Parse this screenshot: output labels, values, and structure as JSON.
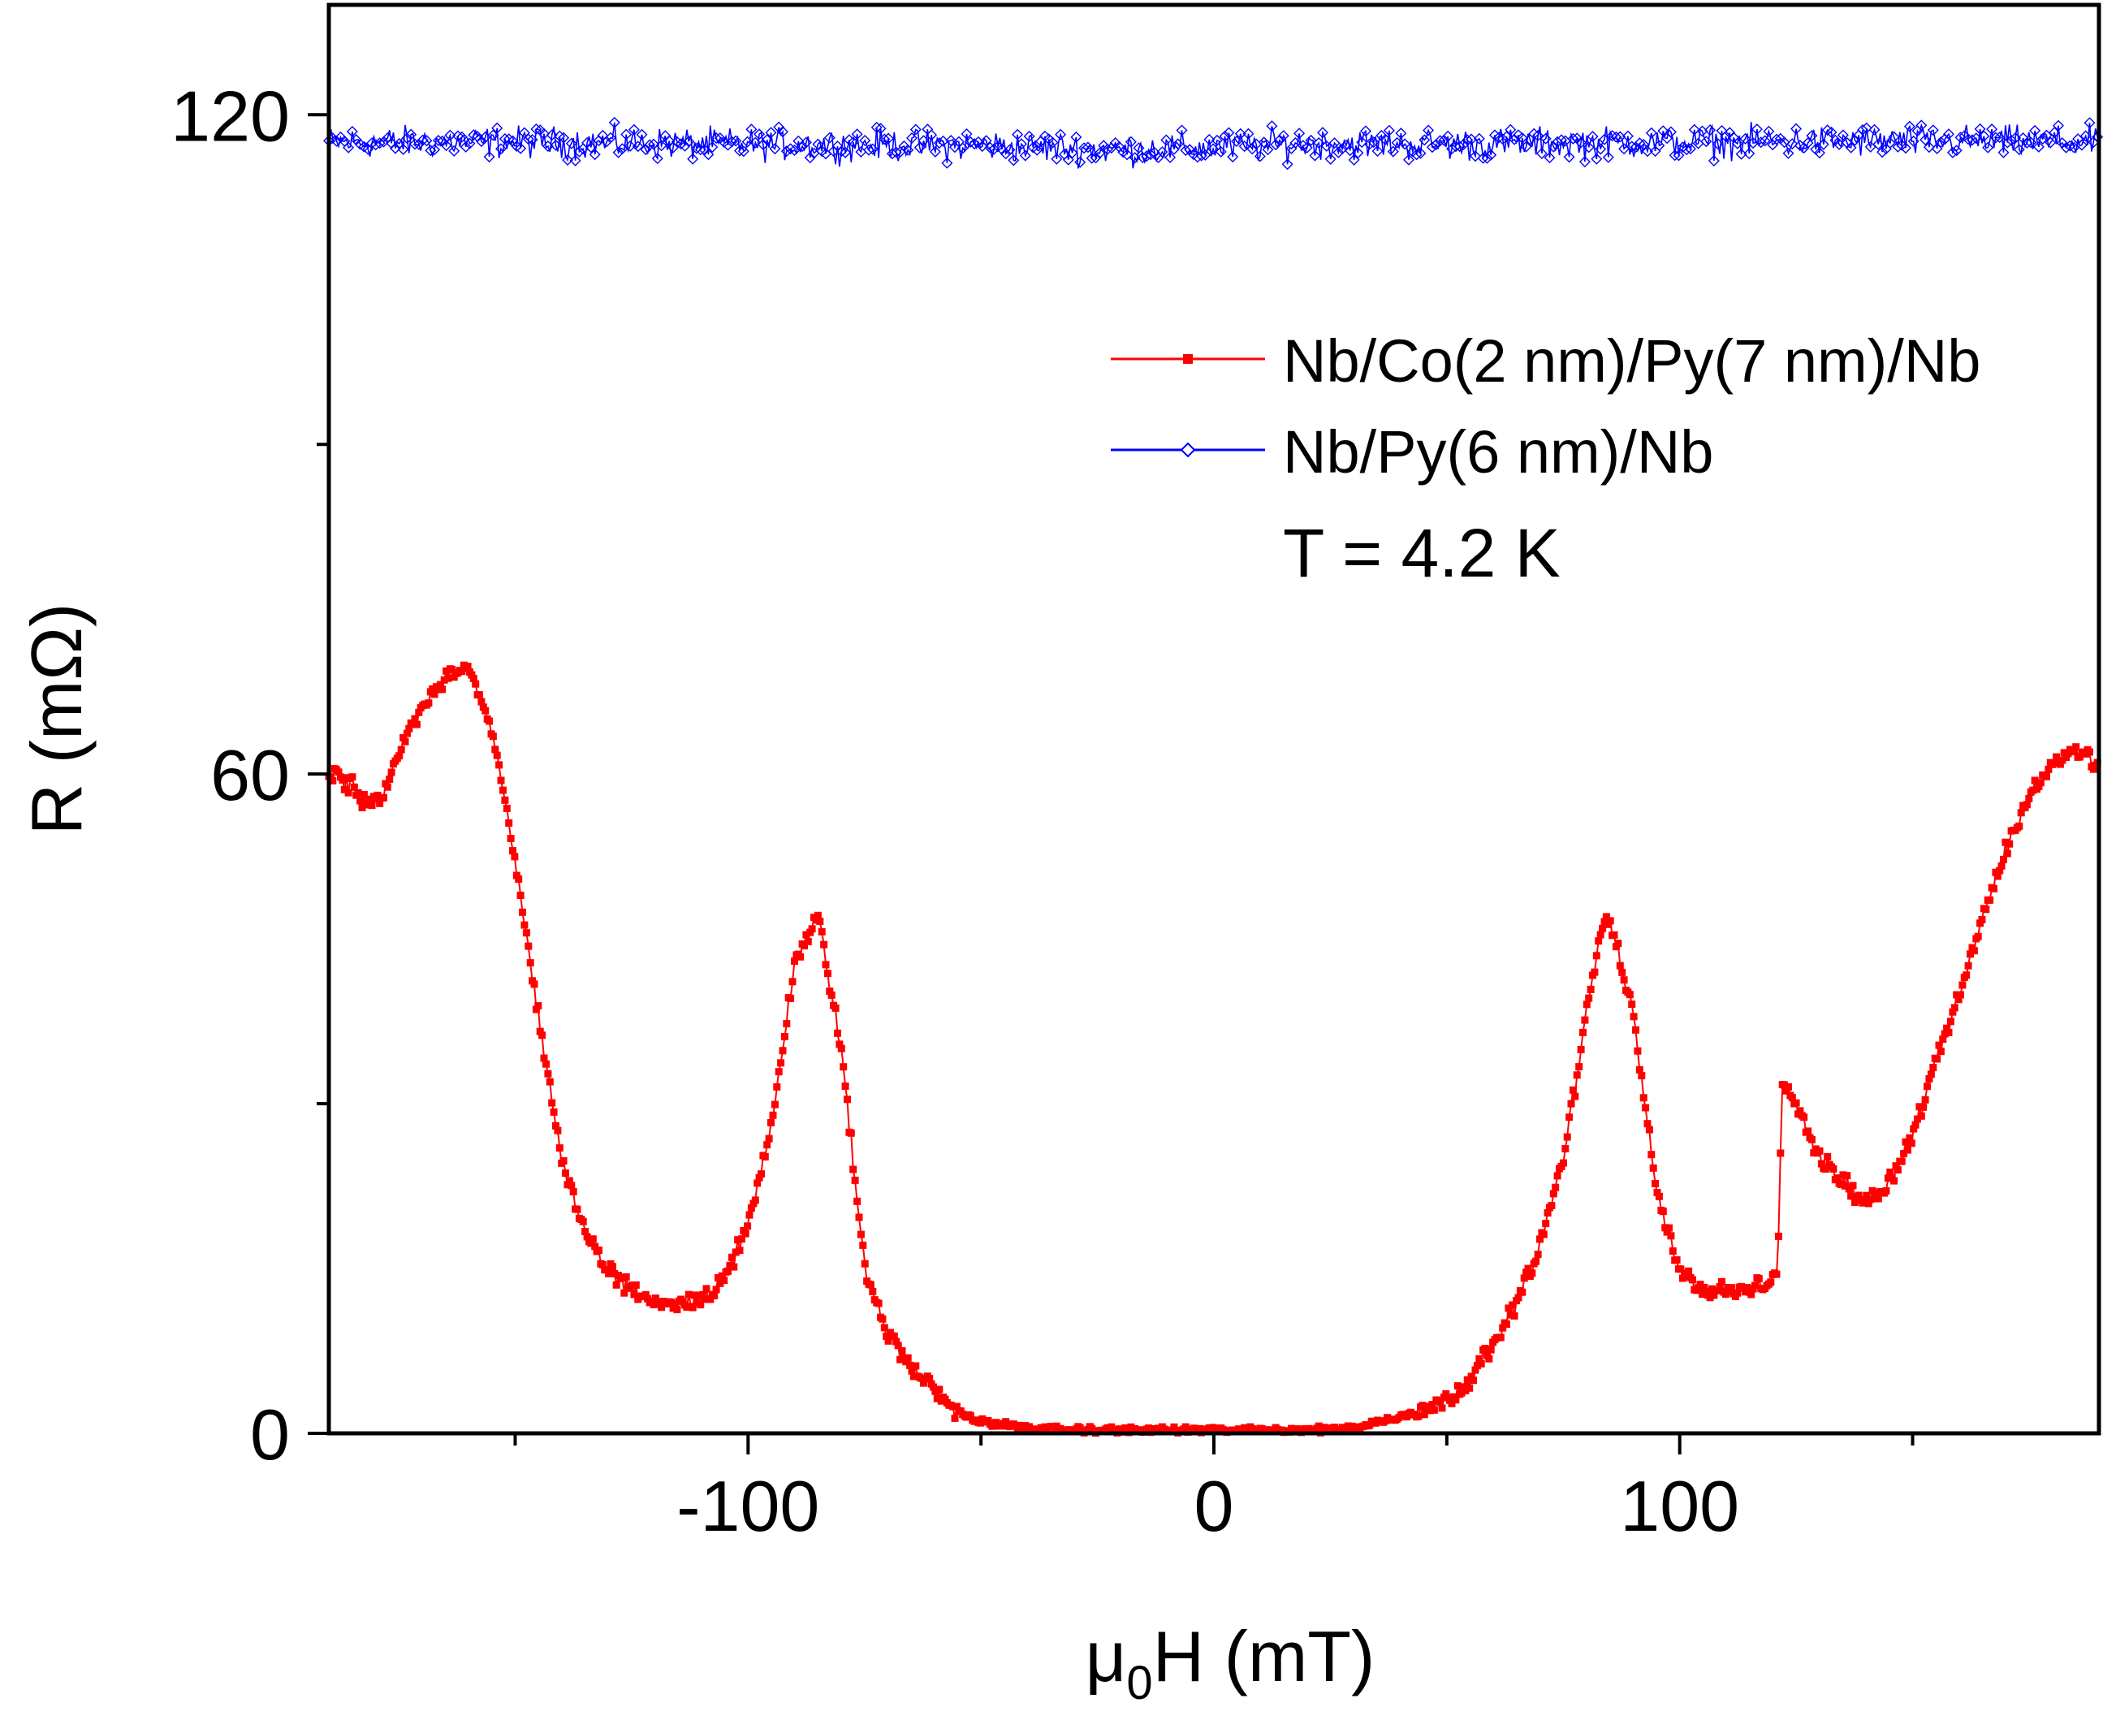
{
  "chart_data": {
    "type": "scatter",
    "title": "",
    "xlabel": "μ0H (mT)",
    "xlabel_main": "μ",
    "xlabel_sub": "0",
    "xlabel_rest": "H (mT)",
    "ylabel": "R (mΩ)",
    "xlim": [
      -190,
      190
    ],
    "ylim": [
      0,
      130
    ],
    "x_ticks": [
      -100,
      0,
      100
    ],
    "x_tick_labels": [
      "-100",
      "0",
      "100"
    ],
    "x_minor_ticks": [
      -150,
      -50,
      50,
      150
    ],
    "y_ticks": [
      0,
      60,
      120
    ],
    "y_tick_labels": [
      "0",
      "60",
      "120"
    ],
    "y_minor_ticks": [
      30,
      90
    ],
    "annotation": "T = 4.2 K",
    "legend_position": "top-right",
    "series": [
      {
        "name": "Nb/Co(2 nm)/Py(7 nm)/Nb",
        "color": "#ff0000",
        "marker": "square",
        "x": [
          -190,
          -185,
          -182,
          -178,
          -175,
          -170,
          -165,
          -160,
          -155,
          -150,
          -145,
          -140,
          -135,
          -130,
          -125,
          -120,
          -115,
          -110,
          -105,
          -100,
          -95,
          -90,
          -85,
          -80,
          -75,
          -70,
          -65,
          -60,
          -55,
          -50,
          -40,
          -30,
          -20,
          -10,
          0,
          10,
          20,
          30,
          40,
          50,
          55,
          60,
          65,
          70,
          75,
          80,
          83,
          85,
          90,
          95,
          100,
          105,
          110,
          115,
          121,
          122,
          125,
          130,
          135,
          140,
          145,
          150,
          155,
          160,
          165,
          170,
          175,
          180,
          185,
          190
        ],
        "y": [
          60,
          59,
          57,
          58,
          62,
          66,
          69,
          70,
          64,
          52,
          38,
          25,
          18,
          15,
          13,
          12,
          12,
          12,
          14,
          19,
          28,
          43,
          47,
          35,
          15,
          9,
          6,
          4,
          2,
          1,
          0.5,
          0.3,
          0.3,
          0.3,
          0.3,
          0.3,
          0.3,
          0.5,
          1.5,
          3,
          5,
          8,
          12,
          17,
          25,
          38,
          46,
          47,
          38,
          22,
          15,
          13,
          13,
          13,
          14,
          32,
          30,
          25,
          23,
          21,
          23,
          27,
          34,
          40,
          47,
          53,
          58,
          61,
          62,
          61
        ]
      },
      {
        "name": "Nb/Py(6 nm)/Nb",
        "color": "#0000ff",
        "marker": "diamond-open",
        "x": [
          -190,
          -150,
          -100,
          -50,
          -20,
          0,
          20,
          50,
          100,
          150,
          190
        ],
        "y": [
          117.5,
          117.5,
          117.3,
          117.2,
          116.8,
          117,
          117.4,
          117.3,
          117.5,
          117.6,
          117.5
        ],
        "noise": 1.4
      }
    ]
  }
}
